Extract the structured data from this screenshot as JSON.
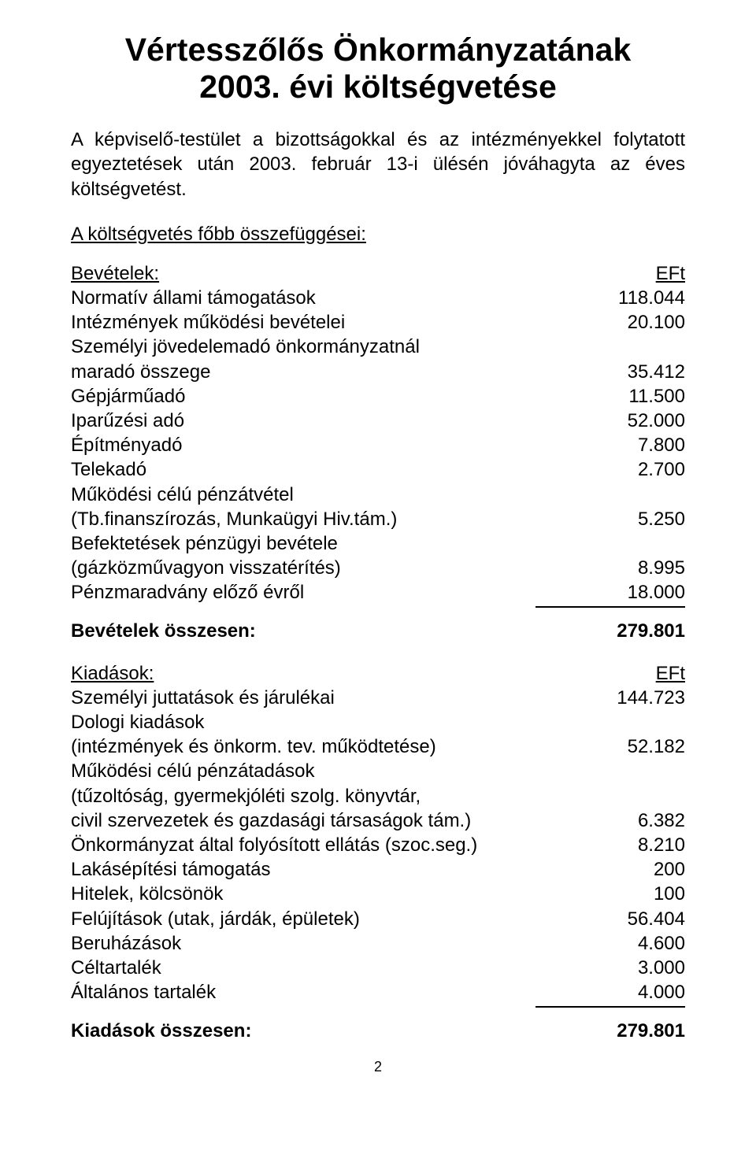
{
  "title_line1": "Vértesszőlős Önkormányzatának",
  "title_line2": "2003. évi költségvetése",
  "intro": "A képviselő-testület a bizottságokkal és az intézményekkel folytatott egyeztetések után 2003. február 13-i ülésén jóváhagyta az éves költségvetést.",
  "subhead": "A költségvetés főbb összefüggései:",
  "revenues_header_label": "Bevételek:",
  "revenues_header_value": "EFt",
  "revenues": [
    {
      "label": "Normatív állami támogatások",
      "value": "118.044"
    },
    {
      "label": "Intézmények működési bevételei",
      "value": "20.100"
    },
    {
      "label": "Személyi jövedelemadó önkormányzatnál",
      "value": ""
    },
    {
      "label": "maradó összege",
      "value": "35.412"
    },
    {
      "label": "Gépjárműadó",
      "value": "11.500"
    },
    {
      "label": "Iparűzési adó",
      "value": "52.000"
    },
    {
      "label": "Építményadó",
      "value": "7.800"
    },
    {
      "label": "Telekadó",
      "value": "2.700"
    },
    {
      "label": "Működési célú pénzátvétel",
      "value": ""
    },
    {
      "label": "(Tb.finanszírozás, Munkaügyi Hiv.tám.)",
      "value": "5.250"
    },
    {
      "label": "Befektetések pénzügyi bevétele",
      "value": ""
    },
    {
      "label": "(gázközművagyon visszatérítés)",
      "value": "8.995"
    },
    {
      "label": "Pénzmaradvány előző évről",
      "value": "18.000"
    }
  ],
  "revenues_total_label": "Bevételek összesen:",
  "revenues_total_value": "279.801",
  "expenses_header_label": "Kiadások:",
  "expenses_header_value": "EFt",
  "expenses": [
    {
      "label": "Személyi juttatások és járulékai",
      "value": "144.723"
    },
    {
      "label": "Dologi kiadások",
      "value": ""
    },
    {
      "label": "(intézmények és önkorm. tev. működtetése)",
      "value": "52.182"
    },
    {
      "label": "Működési célú pénzátadások",
      "value": ""
    },
    {
      "label": "(tűzoltóság, gyermekjóléti szolg. könyvtár,",
      "value": ""
    },
    {
      "label": "civil szervezetek és gazdasági társaságok tám.)",
      "value": "6.382"
    },
    {
      "label": "Önkormányzat által folyósított ellátás (szoc.seg.)",
      "value": "8.210"
    },
    {
      "label": "Lakásépítési támogatás",
      "value": "200"
    },
    {
      "label": "Hitelek, kölcsönök",
      "value": "100"
    },
    {
      "label": "Felújítások (utak, járdák, épületek)",
      "value": "56.404"
    },
    {
      "label": "Beruházások",
      "value": "4.600"
    },
    {
      "label": "Céltartalék",
      "value": "3.000"
    },
    {
      "label": "Általános tartalék",
      "value": "4.000"
    }
  ],
  "expenses_total_label": "Kiadások összesen:",
  "expenses_total_value": "279.801",
  "page_number": "2"
}
